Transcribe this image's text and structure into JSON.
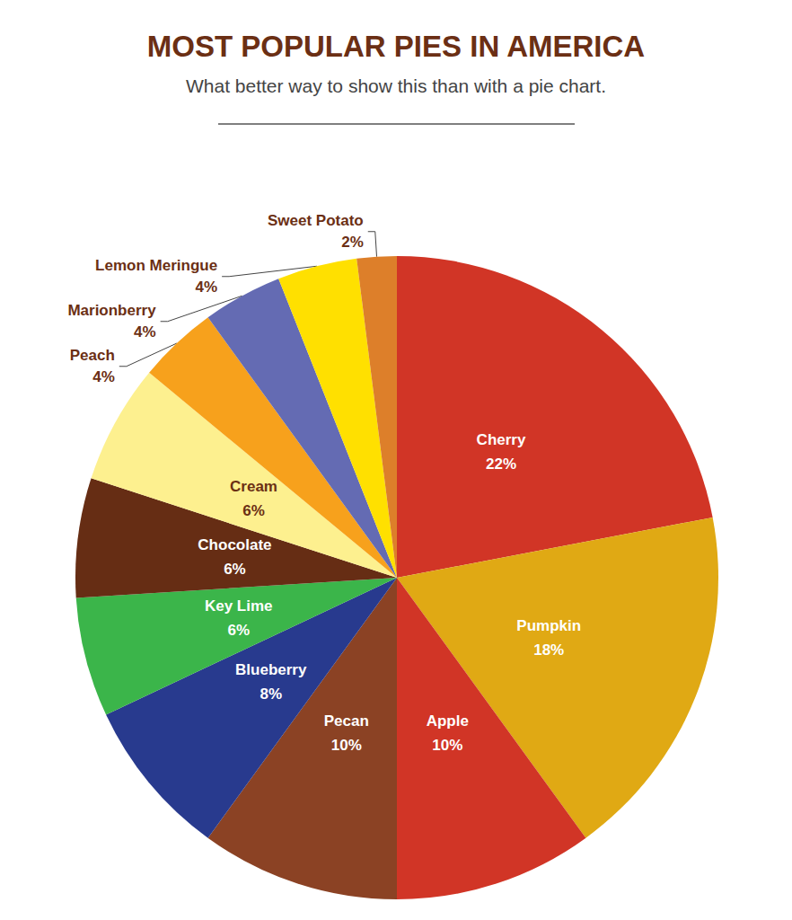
{
  "chart_data": {
    "type": "pie",
    "title": "MOST POPULAR PIES IN AMERICA",
    "subtitle": "What better way to show this than with a pie chart.",
    "categories": [
      "Cherry",
      "Pumpkin",
      "Apple",
      "Pecan",
      "Blueberry",
      "Key Lime",
      "Chocolate",
      "Cream",
      "Peach",
      "Marionberry",
      "Lemon Meringue",
      "Sweet Potato"
    ],
    "values": [
      22,
      18,
      10,
      10,
      8,
      6,
      6,
      6,
      4,
      4,
      4,
      2
    ],
    "value_labels": [
      "22%",
      "18%",
      "10%",
      "10%",
      "8%",
      "6%",
      "6%",
      "6%",
      "4%",
      "4%",
      "4%",
      "2%"
    ],
    "colors": [
      "#d13526",
      "#e0a914",
      "#d13526",
      "#8b4224",
      "#283a8e",
      "#3bb54a",
      "#662d14",
      "#fdf08f",
      "#f7a11c",
      "#646bb3",
      "#ffe000",
      "#dd7f2a"
    ],
    "data_labels": true
  }
}
